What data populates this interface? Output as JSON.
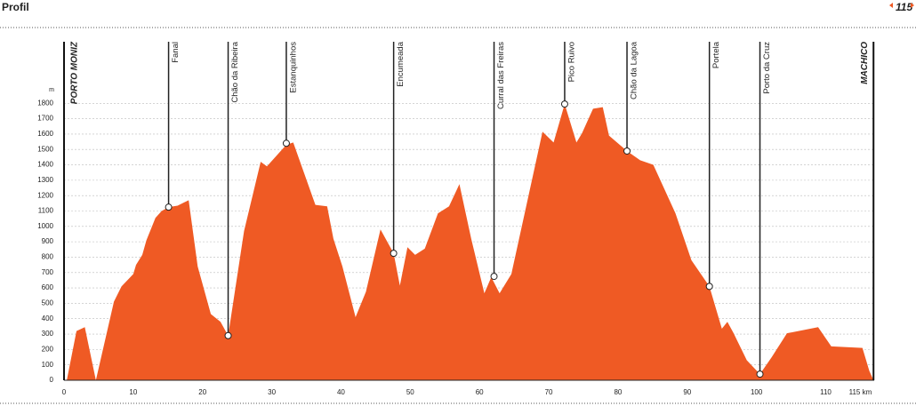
{
  "header": {
    "title": "Profil",
    "page": "115"
  },
  "chart_data": {
    "type": "area",
    "color": "#ef5a24",
    "y_unit": "m",
    "x": [
      0.4,
      1.8,
      3,
      4.6,
      7.2,
      8.3,
      10,
      10.4,
      11.3,
      11.9,
      13.2,
      14.1,
      15.1,
      16.4,
      17.3,
      18,
      19.3,
      21.2,
      22.6,
      23.7,
      26,
      28.4,
      29.3,
      32.1,
      33.1,
      36.3,
      38,
      38.9,
      40.2,
      42.1,
      43.6,
      45.7,
      47.6,
      48.5,
      49.6,
      50.7,
      52.1,
      54,
      55.6,
      57.1,
      58.8,
      60.7,
      61.7,
      62.9,
      64.6,
      69.1,
      70.7,
      72.3,
      74,
      74.8,
      76.4,
      77.8,
      78.7,
      81.3,
      83.2,
      85.1,
      88.3,
      90.6,
      93.2,
      95,
      95.8,
      96.7,
      98.6,
      100.5,
      102.2,
      104.4,
      108.9,
      110.8,
      115.3,
      116.3,
      116.9
    ],
    "values": [
      0,
      320,
      345,
      0,
      510,
      610,
      690,
      750,
      815,
      910,
      1055,
      1100,
      1125,
      1135,
      1155,
      1170,
      740,
      430,
      380,
      290,
      970,
      1420,
      1390,
      1530,
      1545,
      1140,
      1130,
      920,
      740,
      410,
      575,
      980,
      825,
      615,
      865,
      815,
      855,
      1085,
      1130,
      1275,
      920,
      565,
      670,
      565,
      690,
      1615,
      1545,
      1795,
      1545,
      1605,
      1765,
      1775,
      1590,
      1490,
      1430,
      1400,
      1085,
      780,
      610,
      335,
      380,
      305,
      130,
      40,
      150,
      305,
      345,
      220,
      210,
      60,
      0
    ],
    "xlim": [
      0,
      117
    ],
    "ylim": [
      0,
      2200
    ],
    "xticks": [
      0,
      10,
      20,
      30,
      40,
      50,
      60,
      70,
      80,
      90,
      100,
      110,
      {
        "value": 115,
        "label": "115 km"
      }
    ],
    "yticks": [
      0,
      100,
      200,
      300,
      400,
      500,
      600,
      700,
      800,
      900,
      1000,
      1100,
      1200,
      1300,
      1400,
      1500,
      1600,
      1700,
      1800
    ],
    "grid": true,
    "start": {
      "label": "PORTO MONIZ",
      "x": 0
    },
    "end": {
      "label": "MACHICO",
      "x": 116.9
    },
    "waypoints": [
      {
        "label": "Fanal",
        "x": 15.1,
        "y": 1125
      },
      {
        "label": "Chão da Ribeira",
        "x": 23.7,
        "y": 290
      },
      {
        "label": "Estanquinhos",
        "x": 32.1,
        "y": 1540
      },
      {
        "label": "Encumeada",
        "x": 47.6,
        "y": 825
      },
      {
        "label": "Curral das Freiras",
        "x": 62.1,
        "y": 675
      },
      {
        "label": "Pico Ruivo",
        "x": 72.3,
        "y": 1795
      },
      {
        "label": "Chão da Lagoa",
        "x": 81.3,
        "y": 1490
      },
      {
        "label": "Portela",
        "x": 93.2,
        "y": 610
      },
      {
        "label": "Porto da Cruz",
        "x": 100.5,
        "y": 40
      }
    ]
  }
}
